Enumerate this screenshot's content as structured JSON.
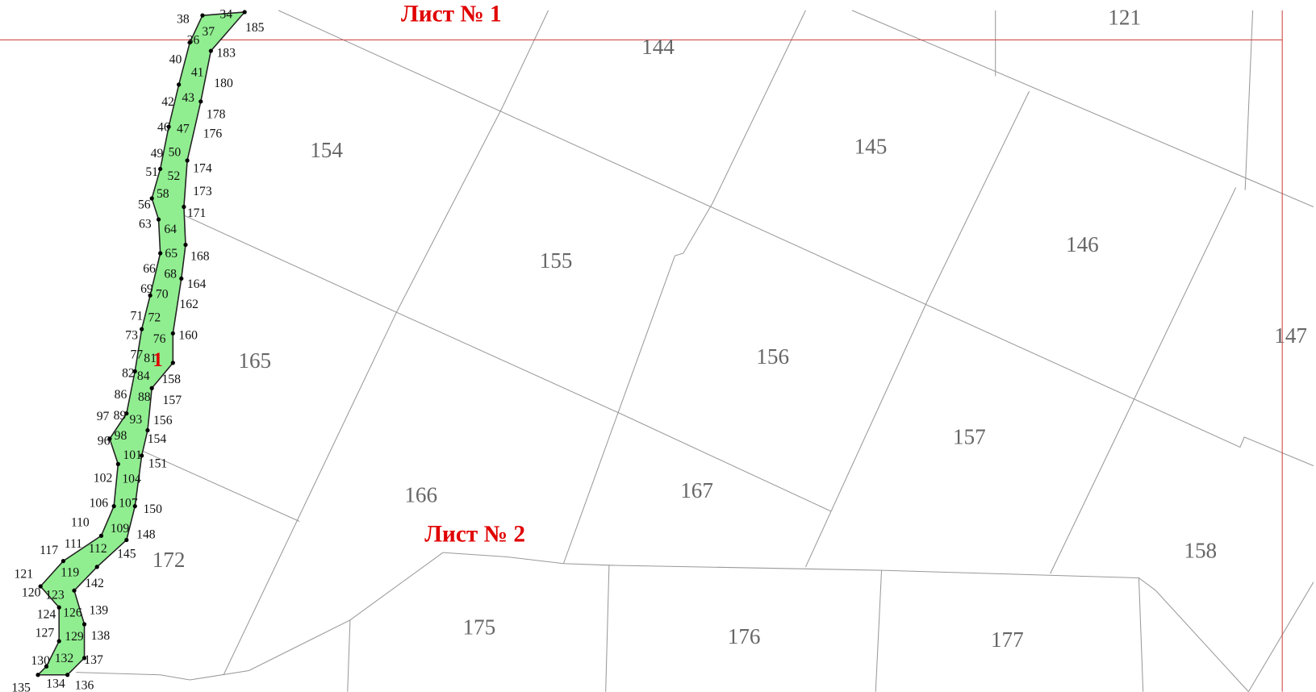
{
  "sheets": [
    "Лист № 1",
    "Лист № 2"
  ],
  "marker": "1",
  "parcels": [
    "121",
    "144",
    "154",
    "145",
    "146",
    "155",
    "147",
    "156",
    "165",
    "157",
    "166",
    "167",
    "172",
    "158",
    "175",
    "176",
    "177"
  ],
  "points": [
    "38",
    "34",
    "185",
    "37",
    "36",
    "183",
    "40",
    "41",
    "180",
    "42",
    "43",
    "178",
    "46",
    "47",
    "176",
    "49",
    "50",
    "174",
    "51",
    "52",
    "173",
    "58",
    "56",
    "171",
    "63",
    "64",
    "65",
    "168",
    "66",
    "68",
    "164",
    "69",
    "70",
    "162",
    "71",
    "72",
    "73",
    "76",
    "160",
    "77",
    "81",
    "82",
    "84",
    "158",
    "86",
    "88",
    "157",
    "97",
    "89",
    "93",
    "156",
    "96",
    "98",
    "154",
    "101",
    "151",
    "102",
    "104",
    "106",
    "107",
    "150",
    "110",
    "109",
    "148",
    "117",
    "111",
    "112",
    "145",
    "121",
    "119",
    "142",
    "120",
    "123",
    "124",
    "126",
    "139",
    "127",
    "129",
    "138",
    "130",
    "132",
    "137",
    "135",
    "134",
    "136"
  ]
}
